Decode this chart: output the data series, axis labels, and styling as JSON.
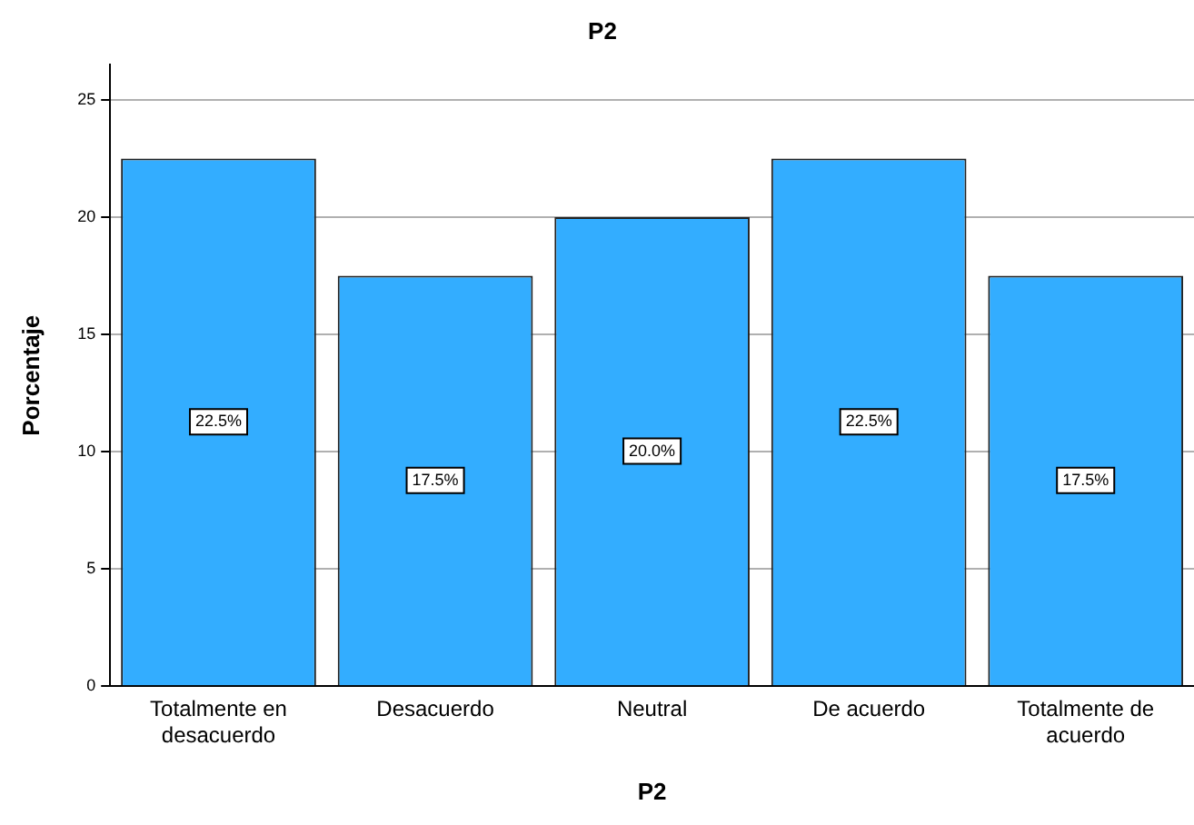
{
  "chart_data": {
    "type": "bar",
    "title": "P2",
    "xlabel": "P2",
    "ylabel": "Porcentaje",
    "categories": [
      "Totalmente en desacuerdo",
      "Desacuerdo",
      "Neutral",
      "De acuerdo",
      "Totalmente de acuerdo"
    ],
    "values": [
      22.5,
      17.5,
      20.0,
      22.5,
      17.5
    ],
    "value_labels": [
      "22.5%",
      "17.5%",
      "20.0%",
      "22.5%",
      "17.5%"
    ],
    "color": "#33adff",
    "ylim": [
      0,
      26.5
    ],
    "yticks": [
      0,
      5,
      10,
      15,
      20,
      25
    ],
    "grid": "y",
    "legend": false
  }
}
